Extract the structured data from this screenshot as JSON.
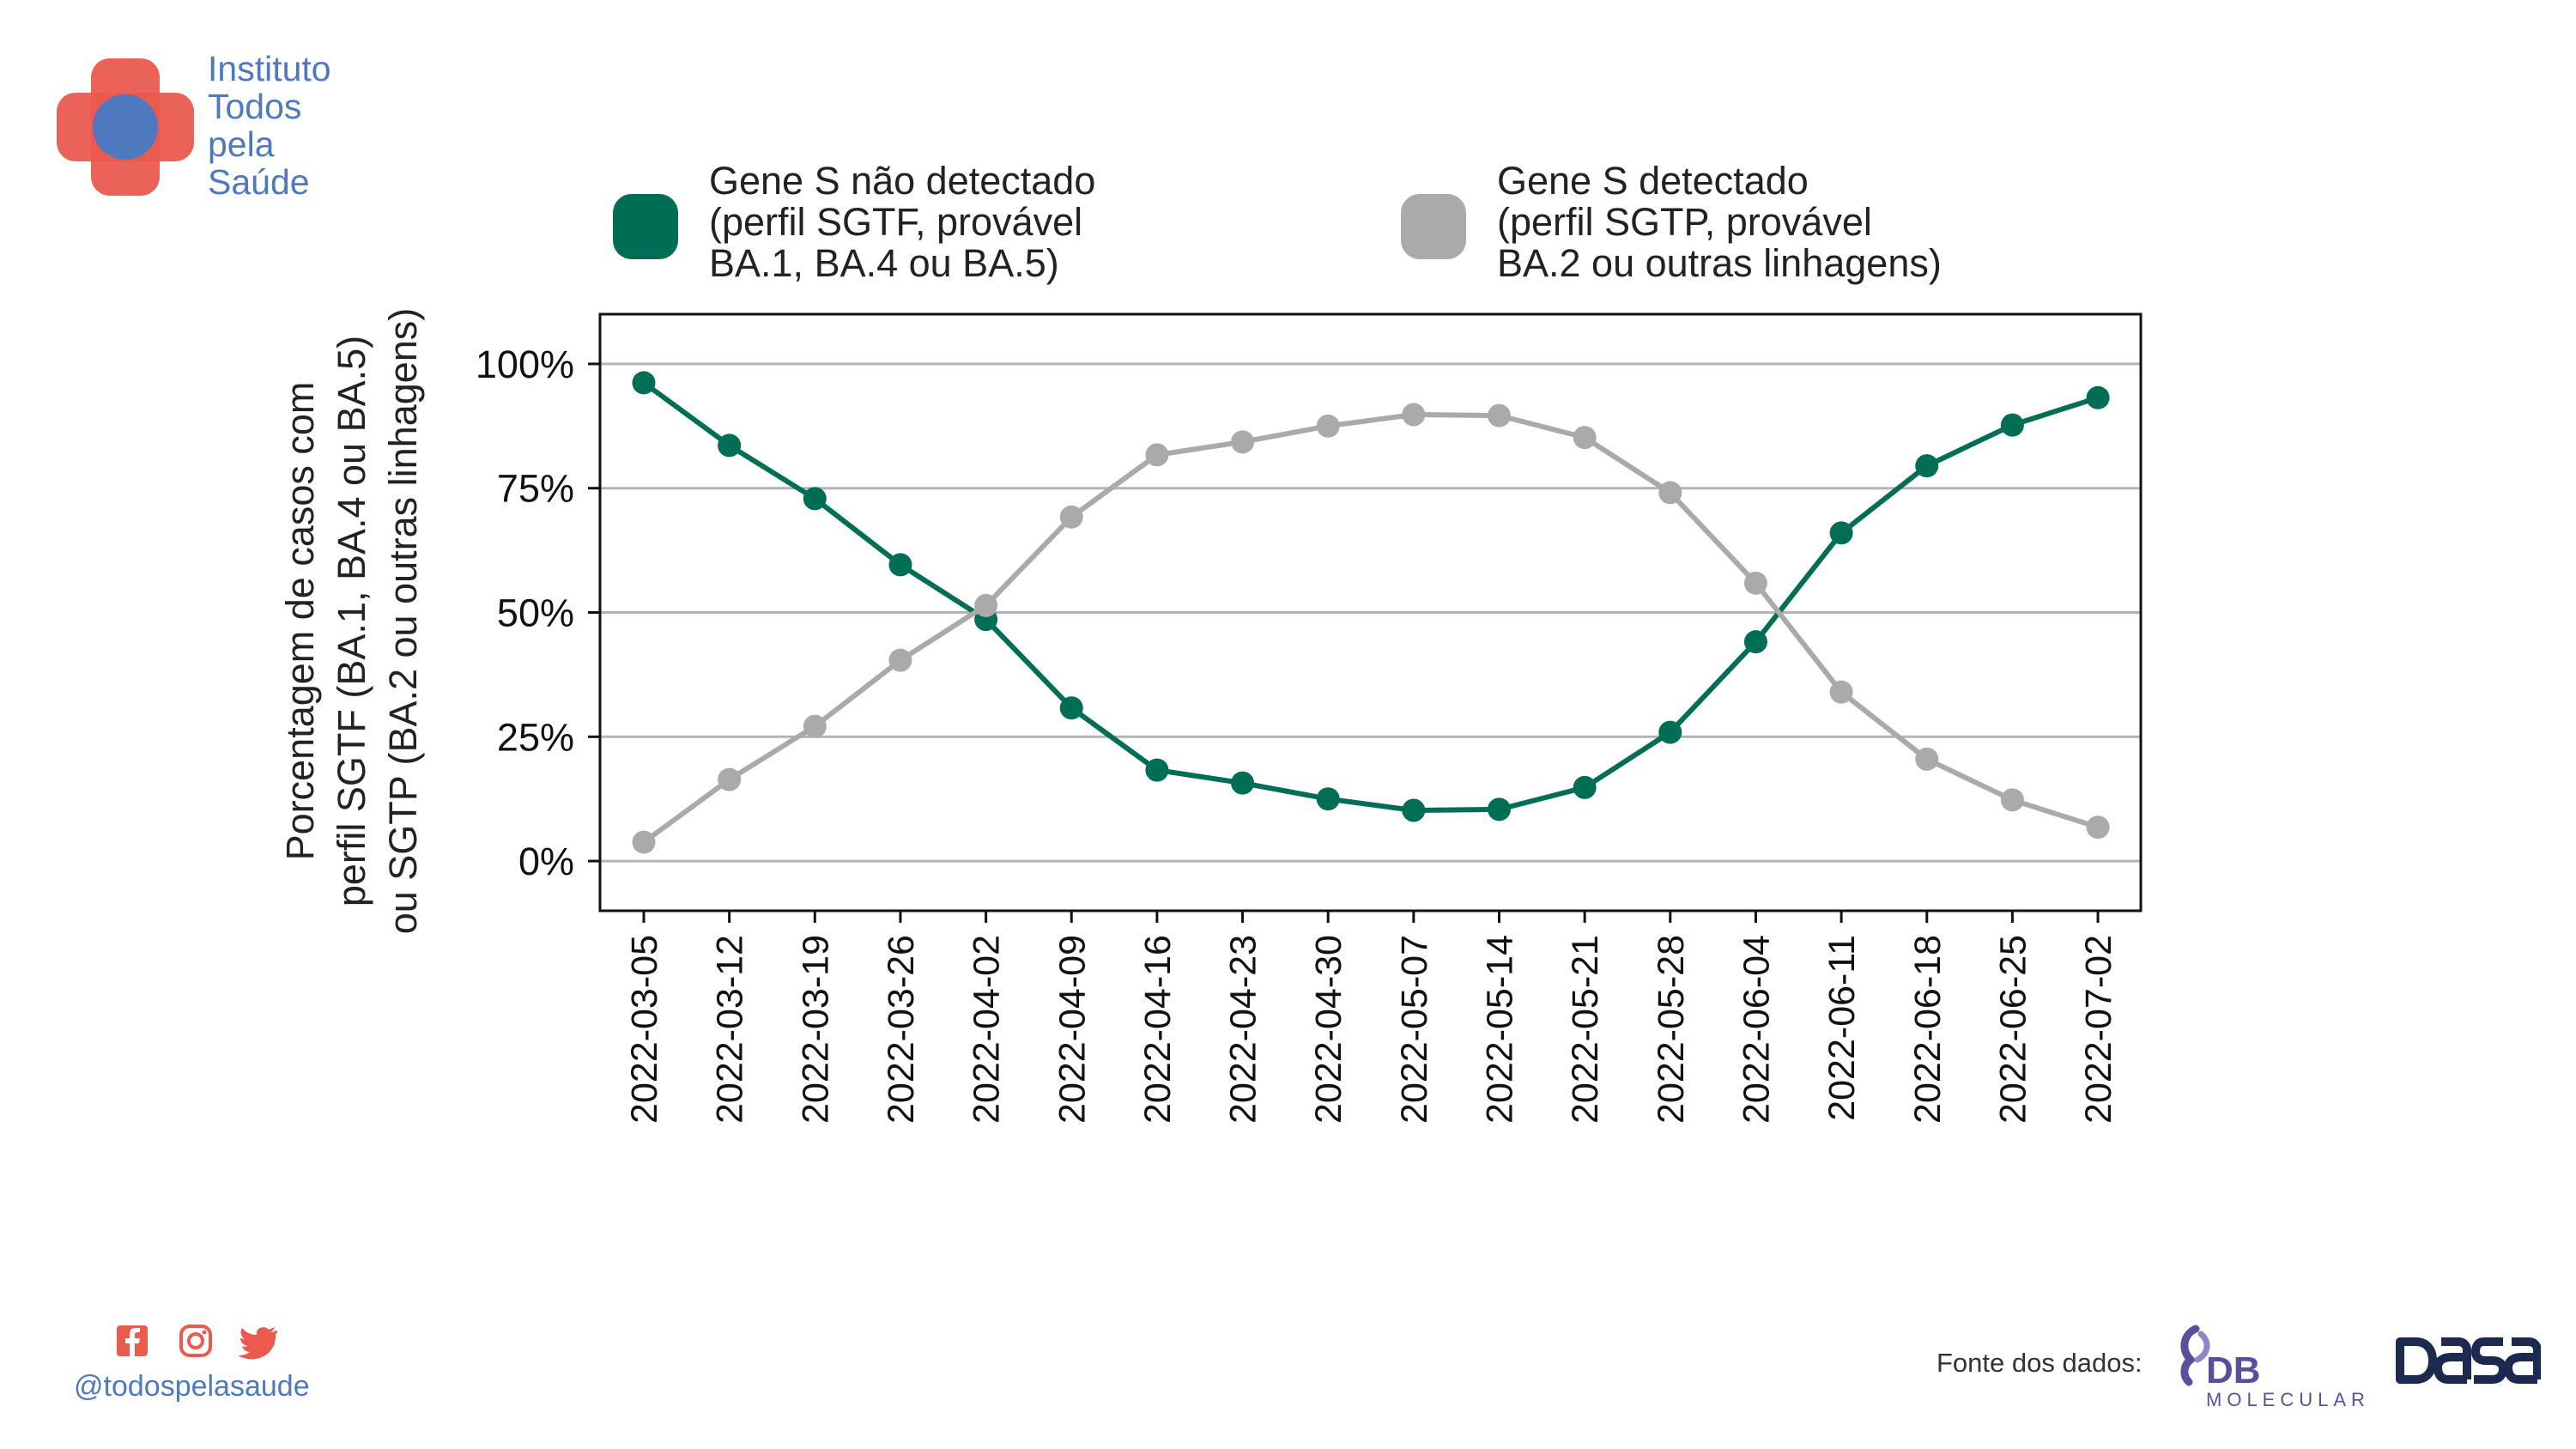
{
  "brand": {
    "logo_lines": [
      "Instituto",
      "Todos",
      "pela",
      "Saúde"
    ],
    "logo_colors": {
      "cross": "#ea5a4f",
      "circle": "#4f79bf"
    }
  },
  "footer": {
    "social_icons": [
      "facebook-icon",
      "instagram-icon",
      "twitter-icon"
    ],
    "handle": "@todospelasaude",
    "source_label": "Fonte dos dados:",
    "partners": [
      "DB MOLECULAR",
      "DASA"
    ],
    "db_text": "DB",
    "db_sub": "MOLECULAR"
  },
  "chart_data": {
    "type": "line",
    "title": "",
    "xlabel": "",
    "ylabel": [
      "Porcentagem de casos com",
      "perfil SGTF (BA.1, BA.4 ou BA.5)",
      "ou SGTP (BA.2 ou outras linhagens)"
    ],
    "x": [
      "2022-03-05",
      "2022-03-12",
      "2022-03-19",
      "2022-03-26",
      "2022-04-02",
      "2022-04-09",
      "2022-04-16",
      "2022-04-23",
      "2022-04-30",
      "2022-05-07",
      "2022-05-14",
      "2022-05-21",
      "2022-05-28",
      "2022-06-04",
      "2022-06-11",
      "2022-06-18",
      "2022-06-25",
      "2022-07-02"
    ],
    "yticks": [
      0,
      25,
      50,
      75,
      100
    ],
    "ytick_labels": [
      "0%",
      "25%",
      "50%",
      "75%",
      "100%"
    ],
    "ylim": [
      -10,
      110
    ],
    "grid": "horizontal",
    "legend_position": "top",
    "series": [
      {
        "name": [
          "Gene S não detectado",
          "(perfil SGTF, provável",
          "BA.1, BA.4 ou BA.5)"
        ],
        "color": "#006d55",
        "values": [
          96.2,
          83.6,
          72.9,
          59.6,
          48.6,
          30.8,
          18.3,
          15.7,
          12.5,
          10.2,
          10.4,
          14.8,
          25.9,
          44.1,
          66.0,
          79.5,
          87.7,
          93.2
        ]
      },
      {
        "name": [
          "Gene S detectado",
          "(perfil SGTP, provável",
          "BA.2 ou outras linhagens)"
        ],
        "color": "#aaaaaa",
        "values": [
          3.8,
          16.4,
          27.1,
          40.4,
          51.4,
          69.2,
          81.7,
          84.3,
          87.5,
          89.8,
          89.6,
          85.2,
          74.1,
          55.9,
          34.0,
          20.5,
          12.3,
          6.8
        ]
      }
    ]
  }
}
